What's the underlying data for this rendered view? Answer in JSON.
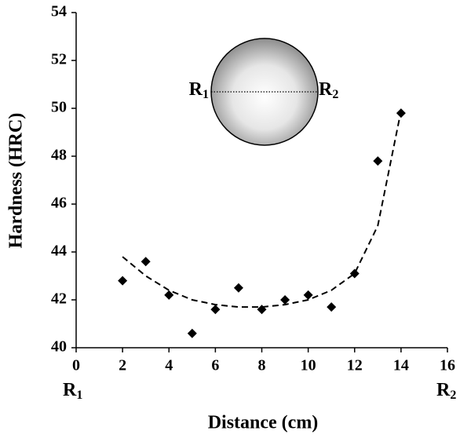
{
  "chart_data": {
    "type": "scatter",
    "x_label": "Distance (cm)",
    "y_label": "Hardness (HRC)",
    "x": [
      2,
      3,
      4,
      5,
      6,
      7,
      8,
      9,
      10,
      11,
      12,
      13,
      14
    ],
    "series": [
      {
        "color": "#000000",
        "values": [
          42.8,
          43.6,
          42.2,
          40.6,
          41.6,
          42.5,
          41.6,
          42.0,
          42.2,
          41.7,
          43.1,
          47.8,
          49.8
        ]
      },
      {
        "color": "#000000",
        "style": "dashed",
        "values": [
          43.8,
          43.0,
          42.4,
          42.0,
          41.8,
          41.7,
          41.7,
          41.8,
          42.0,
          42.4,
          43.1,
          45.1,
          49.9
        ]
      }
    ],
    "xlim": [
      0,
      16
    ],
    "xticks": [
      0,
      2,
      4,
      6,
      8,
      10,
      12,
      14,
      16
    ],
    "ylim": [
      40,
      54
    ],
    "yticks": [
      40,
      42,
      44,
      46,
      48,
      50,
      52,
      54
    ],
    "grid": false,
    "sphere_labels": [
      {
        "main": "R",
        "sub": "1"
      },
      {
        "main": "R",
        "sub": "2"
      }
    ],
    "axis_end_labels": [
      {
        "main": "R",
        "sub": "1"
      },
      {
        "main": "R",
        "sub": "2"
      }
    ]
  }
}
